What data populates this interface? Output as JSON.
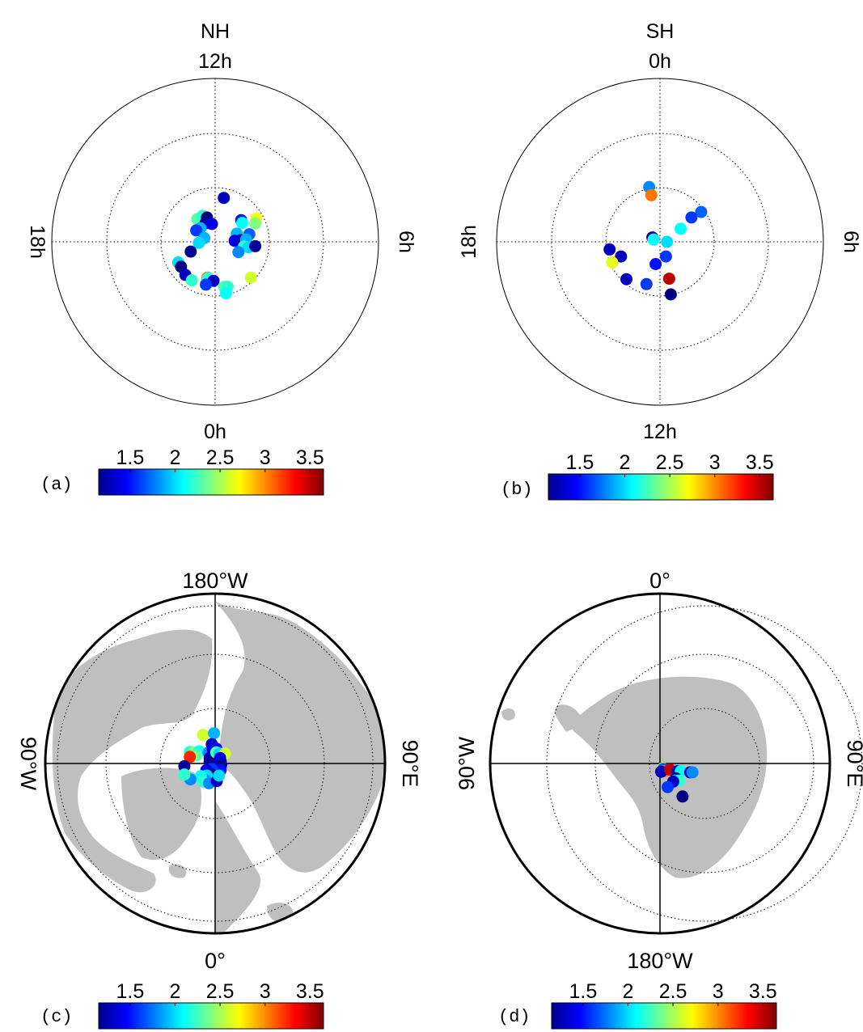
{
  "colorbar": {
    "ticks": [
      "1.5",
      "2",
      "2.5",
      "3",
      "3.5"
    ],
    "min": 1.15,
    "max": 3.65,
    "colormap": "jet"
  },
  "chart_data": [
    {
      "id": "a",
      "type": "scatter",
      "panel_label": "(a)",
      "title": "NH",
      "projection": "polar MLT-latitude dial",
      "labels": {
        "top": "12h",
        "bottom": "0h",
        "left": "18h",
        "right": "6h"
      },
      "ring_circles": [
        "inner dotted",
        "middle dotted",
        "outer solid"
      ],
      "points": [
        {
          "x": 0.16,
          "y": 0.81,
          "v": 1.3
        },
        {
          "x": -0.33,
          "y": 0.42,
          "v": 2.3
        },
        {
          "x": -0.23,
          "y": 0.48,
          "v": 2.2
        },
        {
          "x": -0.15,
          "y": 0.45,
          "v": 1.1
        },
        {
          "x": -0.18,
          "y": 0.34,
          "v": 1.2
        },
        {
          "x": -0.06,
          "y": 0.33,
          "v": 1.4
        },
        {
          "x": -0.27,
          "y": 0.25,
          "v": 1.9
        },
        {
          "x": -0.35,
          "y": 0.21,
          "v": 1.6
        },
        {
          "x": -0.2,
          "y": 0.07,
          "v": 1.9
        },
        {
          "x": -0.3,
          "y": -0.02,
          "v": 2.0
        },
        {
          "x": -0.45,
          "y": -0.18,
          "v": 1.2
        },
        {
          "x": 0.48,
          "y": 0.4,
          "v": 1.5
        },
        {
          "x": 0.5,
          "y": 0.35,
          "v": 2.1
        },
        {
          "x": 0.76,
          "y": 0.43,
          "v": 2.7
        },
        {
          "x": 0.74,
          "y": 0.34,
          "v": 2.4
        },
        {
          "x": 0.63,
          "y": 0.14,
          "v": 1.7
        },
        {
          "x": 0.4,
          "y": 0.15,
          "v": 1.9
        },
        {
          "x": 0.36,
          "y": 0.02,
          "v": 1.4
        },
        {
          "x": 0.47,
          "y": 0.03,
          "v": 1.3
        },
        {
          "x": 0.57,
          "y": 0.04,
          "v": 1.9
        },
        {
          "x": 0.53,
          "y": -0.09,
          "v": 2.2
        },
        {
          "x": 0.62,
          "y": -0.1,
          "v": 2.0
        },
        {
          "x": 0.74,
          "y": -0.08,
          "v": 1.2
        },
        {
          "x": 0.43,
          "y": -0.19,
          "v": 1.8
        },
        {
          "x": -0.68,
          "y": -0.38,
          "v": 2.0
        },
        {
          "x": -0.63,
          "y": -0.46,
          "v": 1.1
        },
        {
          "x": -0.55,
          "y": -0.61,
          "v": 1.3
        },
        {
          "x": -0.43,
          "y": -0.71,
          "v": 2.2
        },
        {
          "x": -0.14,
          "y": -0.66,
          "v": 3.1
        },
        {
          "x": -0.13,
          "y": -0.67,
          "v": 2.2
        },
        {
          "x": -0.03,
          "y": -0.72,
          "v": 1.3
        },
        {
          "x": -0.17,
          "y": -0.79,
          "v": 1.6
        },
        {
          "x": 0.17,
          "y": -0.83,
          "v": 2.3
        },
        {
          "x": 0.23,
          "y": -0.83,
          "v": 2.2
        },
        {
          "x": 0.2,
          "y": -0.95,
          "v": 2.1
        },
        {
          "x": 0.66,
          "y": -0.66,
          "v": 2.6
        }
      ]
    },
    {
      "id": "b",
      "type": "scatter",
      "panel_label": "(b)",
      "title": "SH",
      "projection": "polar MLT-latitude dial",
      "labels": {
        "top": "0h",
        "bottom": "12h",
        "left": "18h",
        "right": "6h"
      },
      "ring_circles": [
        "inner dotted",
        "middle dotted",
        "outer solid"
      ],
      "points": [
        {
          "x": -0.2,
          "y": 1.01,
          "v": 1.8
        },
        {
          "x": -0.16,
          "y": 0.86,
          "v": 3.05
        },
        {
          "x": 0.76,
          "y": 0.55,
          "v": 1.7
        },
        {
          "x": 0.58,
          "y": 0.45,
          "v": 1.6
        },
        {
          "x": 0.38,
          "y": 0.24,
          "v": 2.1
        },
        {
          "x": -0.14,
          "y": 0.08,
          "v": 1.2
        },
        {
          "x": -0.12,
          "y": 0.04,
          "v": 2.1
        },
        {
          "x": 0.13,
          "y": 0.0,
          "v": 2.0
        },
        {
          "x": -0.93,
          "y": -0.14,
          "v": 1.3
        },
        {
          "x": -0.72,
          "y": -0.27,
          "v": 1.3
        },
        {
          "x": -0.88,
          "y": -0.38,
          "v": 2.65
        },
        {
          "x": 0.11,
          "y": -0.27,
          "v": 1.6
        },
        {
          "x": -0.08,
          "y": -0.41,
          "v": 1.5
        },
        {
          "x": -0.62,
          "y": -0.69,
          "v": 1.3
        },
        {
          "x": -0.25,
          "y": -0.78,
          "v": 1.6
        },
        {
          "x": 0.17,
          "y": -0.68,
          "v": 3.5
        },
        {
          "x": 0.2,
          "y": -0.97,
          "v": 1.15
        }
      ]
    },
    {
      "id": "c",
      "type": "scatter",
      "panel_label": "(c)",
      "title": "",
      "projection": "north polar geographic map",
      "labels": {
        "top": "180°W",
        "bottom": "0°",
        "left": "90°W",
        "right": "90°E"
      },
      "ring_circles": [
        "inner dotted",
        "middle dotted",
        "outer dotted",
        "boundary solid"
      ],
      "points": [
        {
          "x": -0.22,
          "y": 0.52,
          "v": 2.6
        },
        {
          "x": -0.02,
          "y": 0.55,
          "v": 1.9
        },
        {
          "x": -0.46,
          "y": 0.21,
          "v": 2.2
        },
        {
          "x": -0.39,
          "y": 0.2,
          "v": 2.4
        },
        {
          "x": -0.29,
          "y": 0.22,
          "v": 2.1
        },
        {
          "x": -0.34,
          "y": 0.15,
          "v": 2.3
        },
        {
          "x": -0.42,
          "y": 0.13,
          "v": 2.4
        },
        {
          "x": -0.46,
          "y": 0.12,
          "v": 3.25
        },
        {
          "x": -0.12,
          "y": 0.2,
          "v": 1.8
        },
        {
          "x": -0.06,
          "y": 0.35,
          "v": 1.3
        },
        {
          "x": -0.04,
          "y": 0.25,
          "v": 1.4
        },
        {
          "x": 0.02,
          "y": 0.27,
          "v": 1.5
        },
        {
          "x": -0.1,
          "y": 0.1,
          "v": 1.3
        },
        {
          "x": -0.1,
          "y": 0.03,
          "v": 1.2
        },
        {
          "x": 0.02,
          "y": 0.2,
          "v": 2.3
        },
        {
          "x": 0.08,
          "y": 0.18,
          "v": 2.0
        },
        {
          "x": 0.18,
          "y": 0.18,
          "v": 2.6
        },
        {
          "x": 0.09,
          "y": 0.1,
          "v": 1.4
        },
        {
          "x": 0.1,
          "y": 0.04,
          "v": 1.4
        },
        {
          "x": 0.11,
          "y": -0.02,
          "v": 1.2
        },
        {
          "x": 0.1,
          "y": -0.12,
          "v": 1.5
        },
        {
          "x": -0.06,
          "y": -0.1,
          "v": 1.6
        },
        {
          "x": -0.16,
          "y": -0.12,
          "v": 1.4
        },
        {
          "x": -0.08,
          "y": -0.19,
          "v": 1.2
        },
        {
          "x": -0.15,
          "y": -0.22,
          "v": 2.0
        },
        {
          "x": -0.2,
          "y": -0.29,
          "v": 1.8
        },
        {
          "x": -0.26,
          "y": -0.23,
          "v": 2.1
        },
        {
          "x": -0.22,
          "y": -0.33,
          "v": 2.2
        },
        {
          "x": -0.11,
          "y": -0.36,
          "v": 1.8
        },
        {
          "x": 0.03,
          "y": -0.32,
          "v": 1.3
        },
        {
          "x": 0.07,
          "y": -0.22,
          "v": 2.0
        },
        {
          "x": -0.45,
          "y": -0.29,
          "v": 1.8
        },
        {
          "x": -0.56,
          "y": -0.05,
          "v": 1.2
        },
        {
          "x": -0.56,
          "y": -0.2,
          "v": 2.2
        }
      ]
    },
    {
      "id": "d",
      "type": "scatter",
      "panel_label": "(d)",
      "title": "",
      "projection": "south polar geographic map",
      "labels": {
        "top": "0°",
        "bottom": "180°W",
        "left": "90°W",
        "right": "90°E"
      },
      "ring_circles": [
        "inner dotted",
        "middle dotted",
        "outer dotted",
        "boundary solid"
      ],
      "points": [
        {
          "x": 0.05,
          "y": -0.09,
          "v": 2.65
        },
        {
          "x": 0.06,
          "y": -0.1,
          "v": 1.7
        },
        {
          "x": 0.09,
          "y": -0.14,
          "v": 3.05
        },
        {
          "x": 0.02,
          "y": -0.15,
          "v": 1.3
        },
        {
          "x": 0.18,
          "y": -0.11,
          "v": 3.5
        },
        {
          "x": 0.32,
          "y": -0.14,
          "v": 1.3
        },
        {
          "x": 0.38,
          "y": -0.14,
          "v": 2.1
        },
        {
          "x": 0.55,
          "y": -0.16,
          "v": 1.3
        },
        {
          "x": 0.59,
          "y": -0.16,
          "v": 1.8
        },
        {
          "x": 0.29,
          "y": -0.27,
          "v": 1.2
        },
        {
          "x": 0.28,
          "y": -0.31,
          "v": 1.9
        },
        {
          "x": 0.35,
          "y": -0.31,
          "v": 2.2
        },
        {
          "x": 0.24,
          "y": -0.33,
          "v": 1.3
        },
        {
          "x": 0.14,
          "y": -0.43,
          "v": 1.6
        },
        {
          "x": 0.41,
          "y": -0.6,
          "v": 1.15
        }
      ]
    }
  ]
}
